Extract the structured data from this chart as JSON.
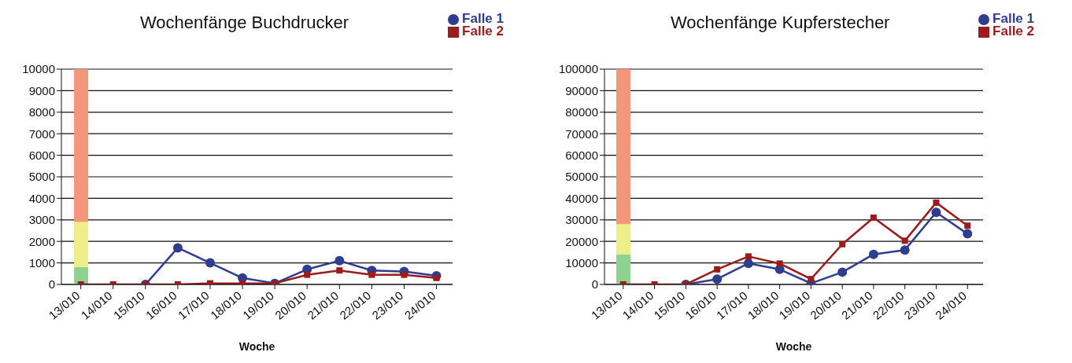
{
  "chart_data": [
    {
      "type": "line",
      "title": "Wochenfänge Buchdrucker",
      "xlabel": "Woche",
      "categories": [
        "13/010",
        "14/010",
        "15/010",
        "16/010",
        "17/010",
        "18/010",
        "19/010",
        "20/010",
        "21/010",
        "22/010",
        "23/010",
        "24/010"
      ],
      "stacked": true,
      "series": [
        {
          "type": "bar",
          "color": "#8fd18f",
          "values": [
            800,
            null,
            null,
            null,
            null,
            null,
            null,
            null,
            null,
            null,
            null,
            null
          ]
        },
        {
          "type": "bar",
          "color": "#eeee8a",
          "values": [
            2100,
            null,
            null,
            null,
            null,
            null,
            null,
            null,
            null,
            null,
            null,
            null
          ]
        },
        {
          "type": "bar",
          "color": "#f4967a",
          "values": [
            7100,
            null,
            null,
            null,
            null,
            null,
            null,
            null,
            null,
            null,
            null,
            null
          ]
        },
        {
          "name": "Falle 1",
          "color": "#2e3d8f",
          "marker": "circle",
          "values": [
            null,
            null,
            0,
            1700,
            1000,
            300,
            50,
            700,
            1100,
            650,
            600,
            400
          ]
        },
        {
          "name": "Falle 2",
          "color": "#9b1c1c",
          "marker": "square",
          "values": [
            0,
            0,
            0,
            0,
            50,
            50,
            50,
            450,
            650,
            450,
            450,
            300
          ]
        }
      ],
      "ylim": [
        0,
        10000
      ],
      "yticks": [
        0,
        1000,
        2000,
        3000,
        4000,
        5000,
        6000,
        7000,
        8000,
        9000,
        10000
      ],
      "grid": "y",
      "legend": "top right"
    },
    {
      "type": "line",
      "title": "Wochenfänge Kupferstecher",
      "xlabel": "Woche",
      "categories": [
        "13/010",
        "14/010",
        "15/010",
        "16/010",
        "17/010",
        "18/010",
        "19/010",
        "20/010",
        "21/010",
        "22/010",
        "23/010",
        "24/010"
      ],
      "stacked": true,
      "series": [
        {
          "type": "bar",
          "color": "#8fd18f",
          "values": [
            14000,
            null,
            null,
            null,
            null,
            null,
            null,
            null,
            null,
            null,
            null,
            null
          ]
        },
        {
          "type": "bar",
          "color": "#eeee8a",
          "values": [
            14000,
            null,
            null,
            null,
            null,
            null,
            null,
            null,
            null,
            null,
            null,
            null
          ]
        },
        {
          "type": "bar",
          "color": "#f4967a",
          "values": [
            72000,
            null,
            null,
            null,
            null,
            null,
            null,
            null,
            null,
            null,
            null,
            null
          ]
        },
        {
          "name": "Falle 1",
          "color": "#2e3d8f",
          "marker": "circle",
          "values": [
            null,
            null,
            0,
            2500,
            9800,
            7000,
            500,
            5700,
            14000,
            16000,
            33500,
            23500
          ]
        },
        {
          "name": "Falle 2",
          "color": "#9b1c1c",
          "marker": "square",
          "values": [
            0,
            0,
            0,
            7000,
            13000,
            9700,
            2500,
            18700,
            31000,
            20300,
            38000,
            27300
          ]
        }
      ],
      "ylim": [
        0,
        100000
      ],
      "yticks": [
        0,
        10000,
        20000,
        30000,
        40000,
        50000,
        60000,
        70000,
        80000,
        90000,
        100000
      ],
      "grid": "y",
      "legend": "top right"
    }
  ]
}
